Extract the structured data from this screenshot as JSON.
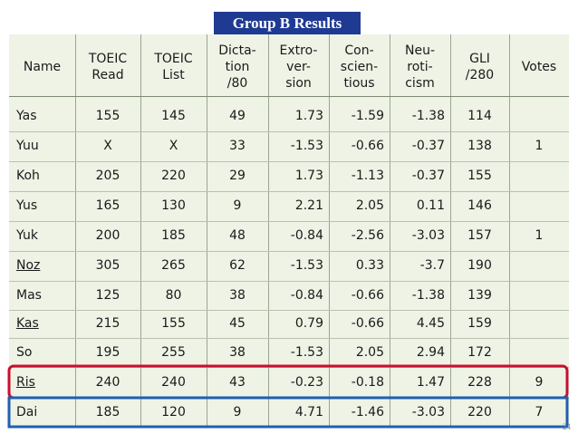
{
  "title": "Group B Results",
  "table": {
    "header": [
      [
        "Name"
      ],
      [
        "TOEIC",
        "Read"
      ],
      [
        "TOEIC",
        "List"
      ],
      [
        "Dicta-",
        "tion",
        "/80"
      ],
      [
        "Extro-",
        "ver-",
        "sion"
      ],
      [
        "Con-",
        "scien-",
        "tious"
      ],
      [
        "Neu-",
        "roti-",
        "cism"
      ],
      [
        "GLI",
        "/280"
      ],
      [
        "Votes"
      ]
    ],
    "rows": [
      [
        "Yas",
        "155",
        "145",
        "49",
        "1.73",
        "-1.59",
        "-1.38",
        "114",
        null
      ],
      [
        "Yuu",
        "X",
        "X",
        "33",
        "-1.53",
        "-0.66",
        "-0.37",
        "138",
        "1"
      ],
      [
        "Koh",
        "205",
        "220",
        "29",
        "1.73",
        "-1.13",
        "-0.37",
        "155",
        null
      ],
      [
        "Yus",
        "165",
        "130",
        "9",
        "2.21",
        "2.05",
        "0.11",
        "146",
        null
      ],
      [
        "Yuk",
        "200",
        "185",
        "48",
        "-0.84",
        "-2.56",
        "-3.03",
        "157",
        "1"
      ],
      [
        "Noz",
        "305",
        "265",
        "62",
        "-1.53",
        "0.33",
        "-3.7",
        "190",
        null
      ],
      [
        "Mas",
        "125",
        "80",
        "38",
        "-0.84",
        "-0.66",
        "-1.38",
        "139",
        null
      ],
      [
        "Kas",
        "215",
        "155",
        "45",
        "0.79",
        "-0.66",
        "4.45",
        "159",
        null
      ],
      [
        "So",
        "195",
        "255",
        "38",
        "-1.53",
        "2.05",
        "2.94",
        "172",
        null
      ],
      [
        "Ris",
        "240",
        "240",
        "43",
        "-0.23",
        "-0.18",
        "1.47",
        "228",
        "9"
      ],
      [
        "Dai",
        "185",
        "120",
        "9",
        "4.71",
        "-1.46",
        "-3.03",
        "220",
        "7"
      ]
    ]
  },
  "page_number": "24"
}
